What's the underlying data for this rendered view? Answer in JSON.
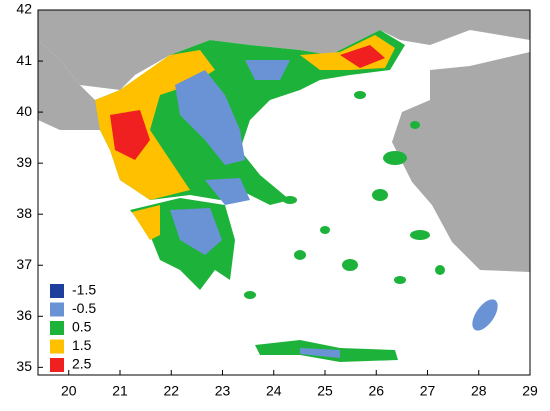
{
  "map": {
    "xlim": [
      19.4,
      29
    ],
    "ylim": [
      34.85,
      42
    ],
    "xticks": [
      20,
      21,
      22,
      23,
      24,
      25,
      26,
      27,
      28,
      29
    ],
    "yticks": [
      35,
      36,
      37,
      38,
      39,
      40,
      41,
      42
    ],
    "legend": [
      {
        "value": -1.5,
        "color": "#1f3f9f"
      },
      {
        "value": -0.5,
        "color": "#6a93d6"
      },
      {
        "value": 0.5,
        "color": "#1db33a"
      },
      {
        "value": 1.5,
        "color": "#ffc000"
      },
      {
        "value": 2.5,
        "color": "#f02020"
      }
    ]
  }
}
